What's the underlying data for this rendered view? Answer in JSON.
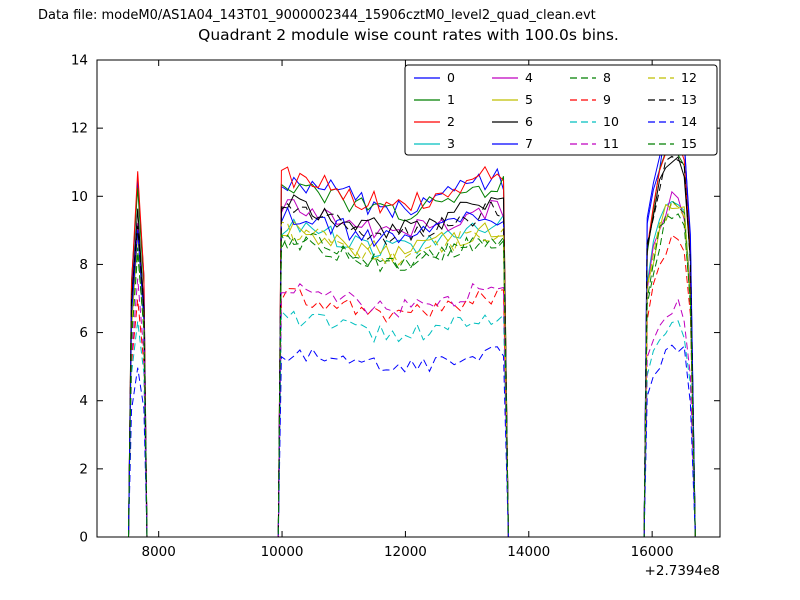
{
  "header": {
    "data_file": "Data file: modeM0/AS1A04_143T01_9000002344_15906cztM0_level2_quad_clean.evt"
  },
  "chart_data": {
    "type": "line",
    "title": "Quadrant 2 module wise count rates with 100.0s bins.",
    "xlabel": "",
    "ylabel": "",
    "x_offset_label": "+2.7394e8",
    "xlim": [
      7000,
      17100
    ],
    "ylim": [
      0,
      14
    ],
    "xticks": [
      8000,
      10000,
      12000,
      14000,
      16000
    ],
    "yticks": [
      0,
      2,
      4,
      6,
      8,
      10,
      12,
      14
    ],
    "bin_seconds": 100,
    "grid": false,
    "legend": {
      "location": "upper center",
      "ncol": 4
    },
    "segments": [
      {
        "start": 7560,
        "end": 7760,
        "shape": "spike"
      },
      {
        "start": 9990,
        "end": 13620,
        "shape": "plateau"
      },
      {
        "start": 15920,
        "end": 16650,
        "shape": "rise"
      }
    ],
    "series": [
      {
        "name": "0",
        "color": "#0000ff",
        "style": "solid",
        "levels": [
          10.4,
          10.1,
          11.6
        ]
      },
      {
        "name": "1",
        "color": "#007f00",
        "style": "solid",
        "levels": [
          10.1,
          9.9,
          11.0
        ]
      },
      {
        "name": "2",
        "color": "#ff0000",
        "style": "solid",
        "levels": [
          10.5,
          10.2,
          11.2
        ]
      },
      {
        "name": "3",
        "color": "#00bfbf",
        "style": "solid",
        "levels": [
          8.9,
          8.8,
          9.6
        ]
      },
      {
        "name": "4",
        "color": "#bf00bf",
        "style": "solid",
        "levels": [
          9.2,
          9.3,
          9.5
        ]
      },
      {
        "name": "5",
        "color": "#bfbf00",
        "style": "solid",
        "levels": [
          8.8,
          8.7,
          9.4
        ]
      },
      {
        "name": "6",
        "color": "#000000",
        "style": "solid",
        "levels": [
          9.5,
          9.4,
          10.7
        ]
      },
      {
        "name": "7",
        "color": "#0000ff",
        "style": "solid",
        "levels": [
          9.0,
          9.1,
          11.8
        ]
      },
      {
        "name": "8",
        "color": "#007f00",
        "style": "dashed",
        "levels": [
          8.2,
          8.4,
          9.2
        ]
      },
      {
        "name": "9",
        "color": "#ff0000",
        "style": "dashed",
        "levels": [
          6.9,
          6.8,
          8.4
        ]
      },
      {
        "name": "10",
        "color": "#00bfbf",
        "style": "dashed",
        "levels": [
          6.6,
          6.2,
          6.0
        ]
      },
      {
        "name": "11",
        "color": "#bf00bf",
        "style": "dashed",
        "levels": [
          7.4,
          7.0,
          6.5
        ]
      },
      {
        "name": "12",
        "color": "#bfbf00",
        "style": "dashed",
        "levels": [
          8.5,
          8.6,
          9.3
        ]
      },
      {
        "name": "13",
        "color": "#000000",
        "style": "dashed",
        "levels": [
          9.3,
          9.2,
          10.8
        ]
      },
      {
        "name": "14",
        "color": "#0000ff",
        "style": "dashed",
        "levels": [
          5.1,
          5.2,
          5.4
        ]
      },
      {
        "name": "15",
        "color": "#007f00",
        "style": "dashed",
        "levels": [
          8.3,
          8.3,
          9.1
        ]
      }
    ]
  }
}
